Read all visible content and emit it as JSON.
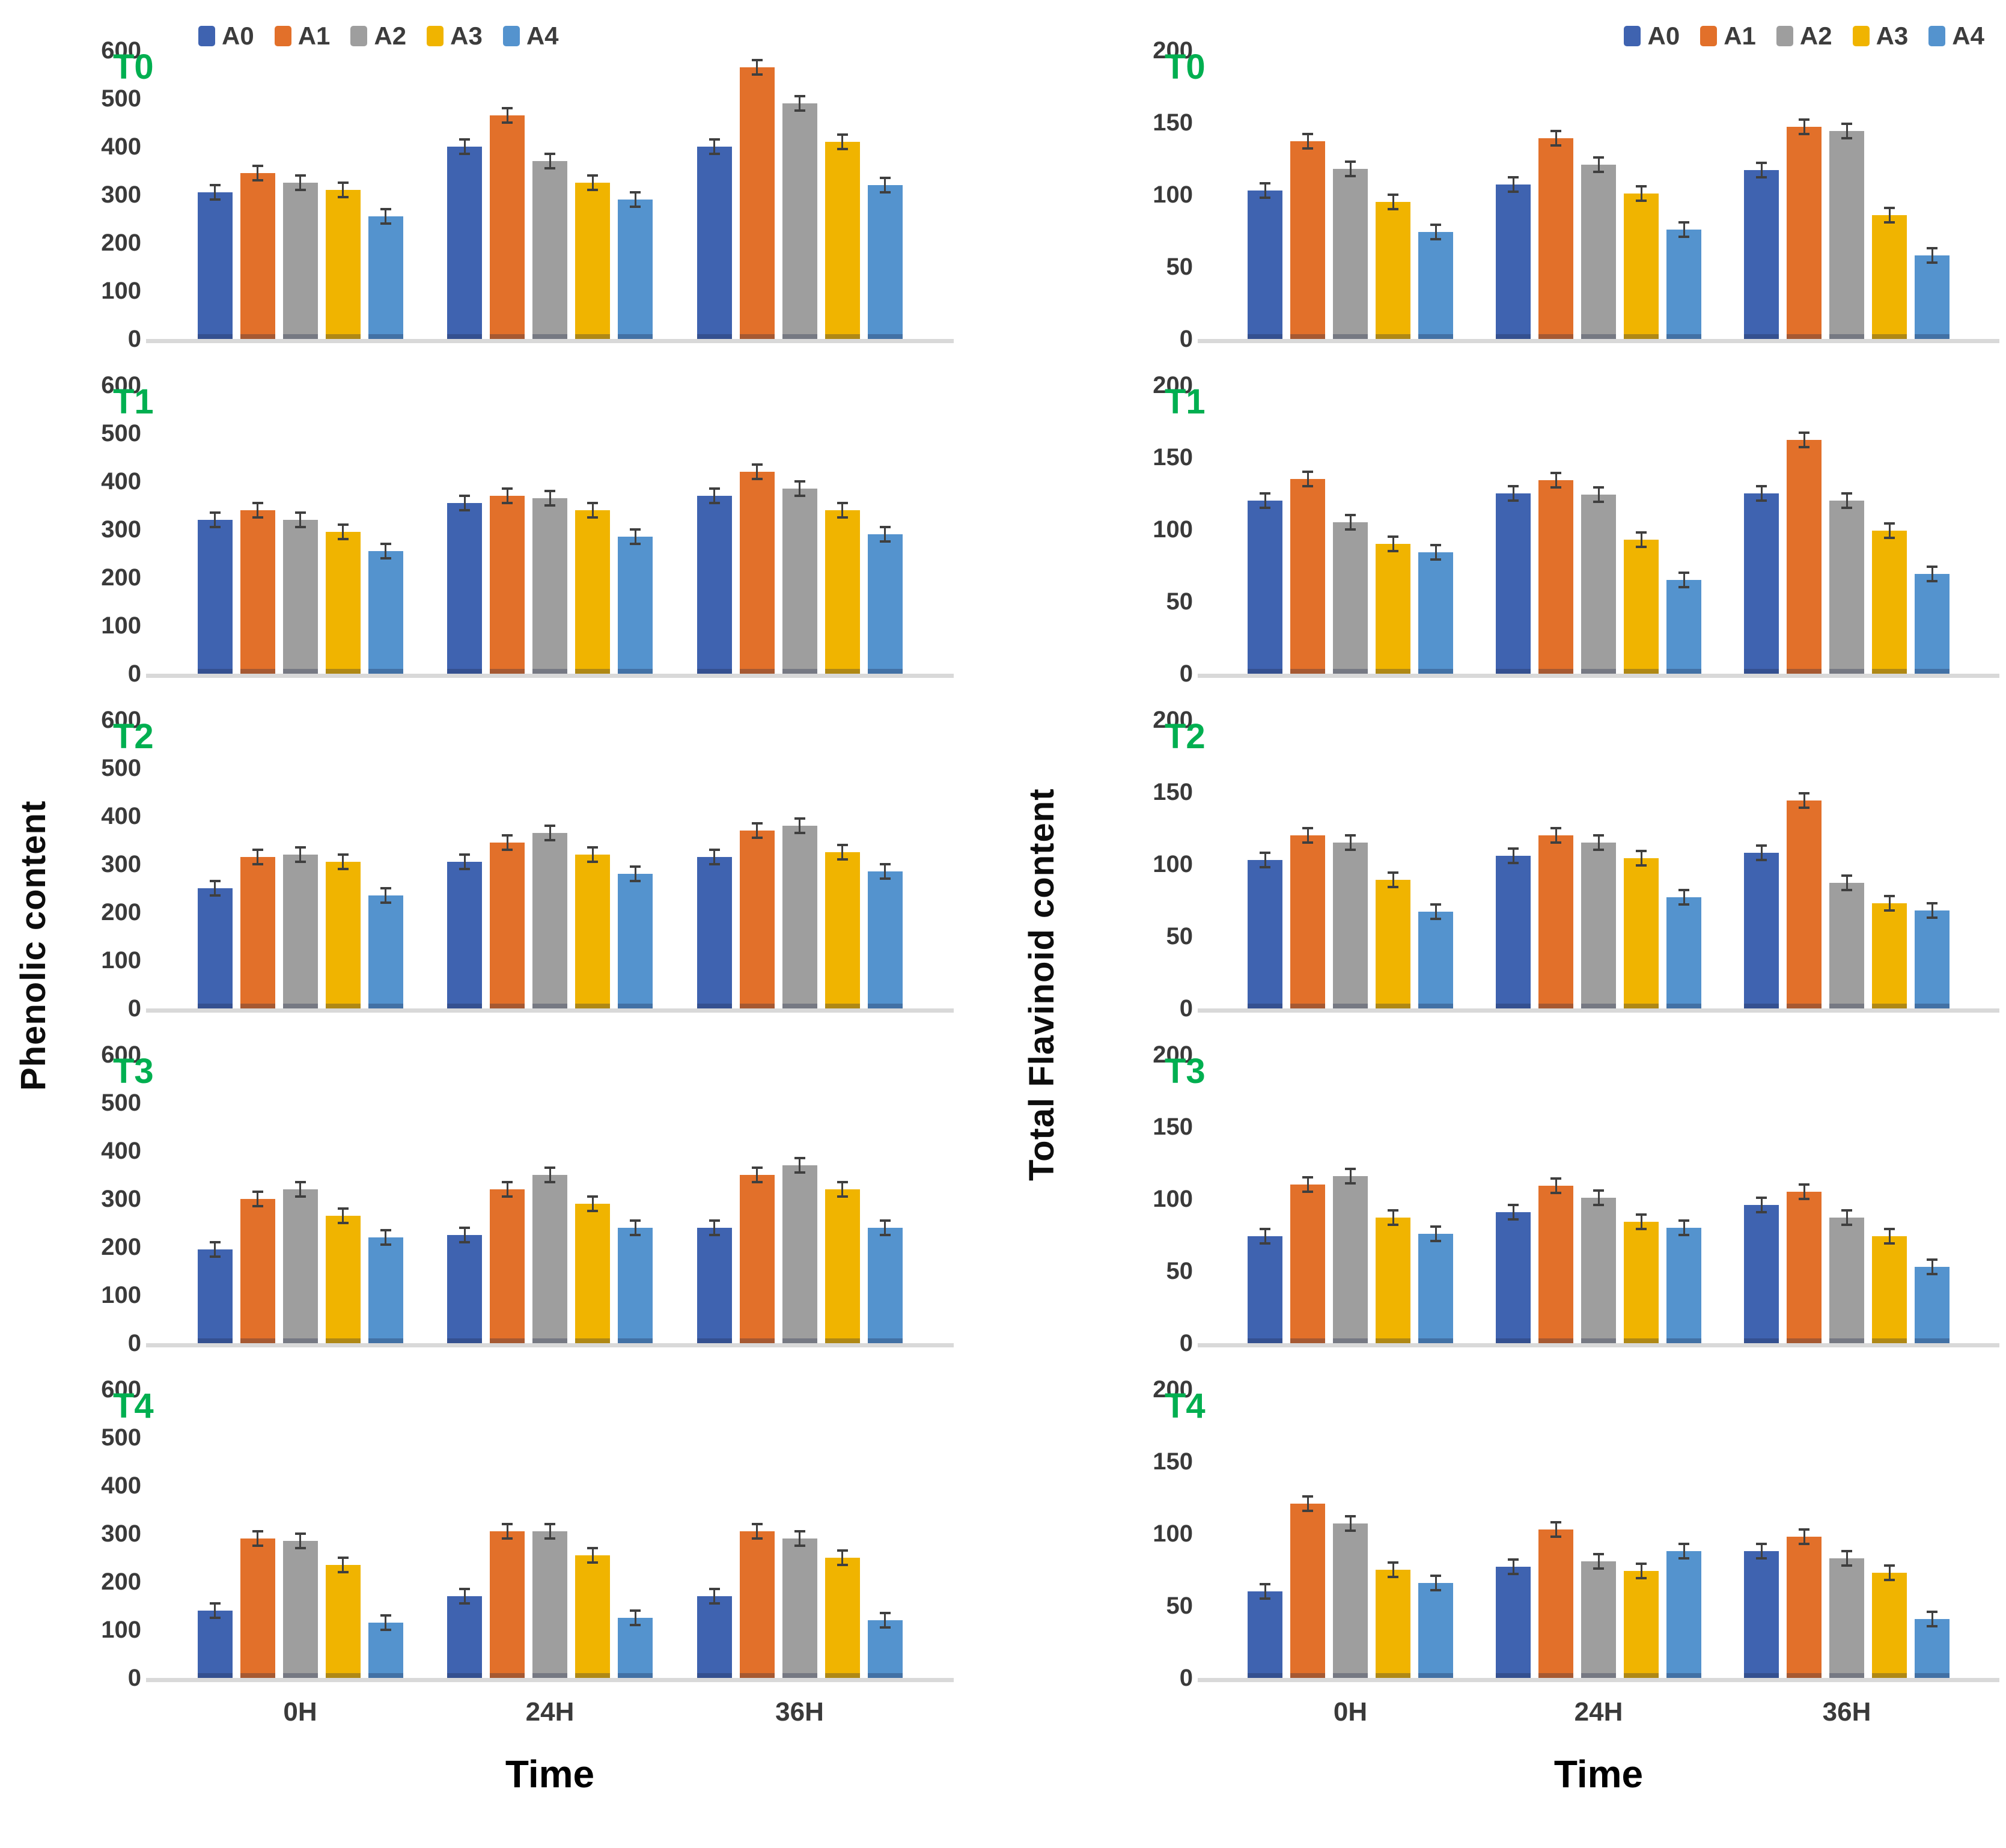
{
  "chart_data": [
    {
      "type": "bar",
      "ylabel": "Phenolic content",
      "xlabel": "Time",
      "categories": [
        "0H",
        "24H",
        "36H"
      ],
      "ylim": [
        0,
        600
      ],
      "yticks": [
        0,
        100,
        200,
        300,
        400,
        500,
        600
      ],
      "grid": false,
      "legend": [
        "A0",
        "A1",
        "A2",
        "A3",
        "A4"
      ],
      "legend_position": "top of first panel, left-center",
      "colors": [
        "#3f63b0",
        "#e2702a",
        "#9e9e9e",
        "#f0b400",
        "#5493ce"
      ],
      "panel_label_color": "#00af50",
      "error_bar": 15,
      "panels": [
        {
          "label": "T0",
          "groups": [
            [
              305,
              345,
              325,
              310,
              255
            ],
            [
              400,
              465,
              370,
              325,
              290
            ],
            [
              400,
              565,
              490,
              410,
              320
            ]
          ]
        },
        {
          "label": "T1",
          "groups": [
            [
              320,
              340,
              320,
              295,
              255
            ],
            [
              355,
              370,
              365,
              340,
              285
            ],
            [
              370,
              420,
              385,
              340,
              290
            ]
          ]
        },
        {
          "label": "T2",
          "groups": [
            [
              250,
              315,
              320,
              305,
              235
            ],
            [
              305,
              345,
              365,
              320,
              280
            ],
            [
              315,
              370,
              380,
              325,
              285
            ]
          ]
        },
        {
          "label": "T3",
          "groups": [
            [
              195,
              300,
              320,
              265,
              220
            ],
            [
              225,
              320,
              350,
              290,
              240
            ],
            [
              240,
              350,
              370,
              320,
              240
            ]
          ]
        },
        {
          "label": "T4",
          "groups": [
            [
              140,
              290,
              285,
              235,
              115
            ],
            [
              170,
              305,
              305,
              255,
              125
            ],
            [
              170,
              305,
              290,
              250,
              120
            ]
          ]
        }
      ]
    },
    {
      "type": "bar",
      "ylabel": "Total Flavinoid content",
      "xlabel": "Time",
      "categories": [
        "0H",
        "24H",
        "36H"
      ],
      "ylim": [
        0,
        200
      ],
      "yticks": [
        0,
        50,
        100,
        150,
        200
      ],
      "grid": false,
      "legend": [
        "A0",
        "A1",
        "A2",
        "A3",
        "A4"
      ],
      "legend_position": "top of first panel, right",
      "colors": [
        "#3f63b0",
        "#e2702a",
        "#9e9e9e",
        "#f0b400",
        "#5493ce"
      ],
      "panel_label_color": "#00af50",
      "error_bar": 5,
      "panels": [
        {
          "label": "T0",
          "groups": [
            [
              103,
              137,
              118,
              95,
              74
            ],
            [
              107,
              139,
              121,
              101,
              76
            ],
            [
              117,
              147,
              144,
              86,
              58
            ]
          ]
        },
        {
          "label": "T1",
          "groups": [
            [
              120,
              135,
              105,
              90,
              84
            ],
            [
              125,
              134,
              124,
              93,
              65
            ],
            [
              125,
              162,
              120,
              99,
              69
            ]
          ]
        },
        {
          "label": "T2",
          "groups": [
            [
              103,
              120,
              115,
              89,
              67
            ],
            [
              106,
              120,
              115,
              104,
              77
            ],
            [
              108,
              144,
              87,
              73,
              68
            ]
          ]
        },
        {
          "label": "T3",
          "groups": [
            [
              74,
              110,
              116,
              87,
              76
            ],
            [
              91,
              109,
              101,
              84,
              80
            ],
            [
              96,
              105,
              87,
              74,
              53
            ]
          ]
        },
        {
          "label": "T4",
          "groups": [
            [
              60,
              121,
              107,
              75,
              66
            ],
            [
              77,
              103,
              81,
              74,
              88
            ],
            [
              88,
              98,
              83,
              73,
              41
            ]
          ]
        }
      ]
    }
  ]
}
